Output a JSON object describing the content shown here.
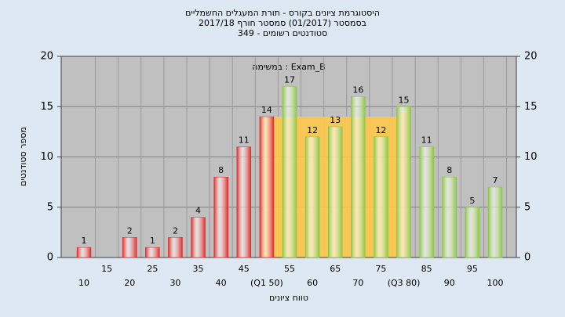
{
  "chart_data": {
    "type": "bar",
    "title": [
      "היסטוגרמת ציונים בקורס - תורת המעגלים החשמליים",
      "בסמסטר (01/2017) סמסטר חורף 2017/18",
      "349 - סטודנטים רשומים"
    ],
    "subtitle": "במשימה : Exam_B",
    "x_label": "טווח ציונים",
    "y_label": "מספר סטודנטים",
    "categories": [
      "10",
      "15",
      "20",
      "25",
      "30",
      "35",
      "40",
      "45",
      "(Q1 50)",
      "55",
      "60",
      "65",
      "70",
      "75",
      "(Q3 80)",
      "85",
      "90",
      "95",
      "100"
    ],
    "values": [
      1,
      null,
      2,
      1,
      2,
      4,
      8,
      11,
      14,
      17,
      12,
      13,
      16,
      12,
      15,
      11,
      8,
      5,
      7
    ],
    "colors": [
      "#e02828",
      "#e02828",
      "#e02828",
      "#e02828",
      "#e02828",
      "#e02828",
      "#e02828",
      "#e02828",
      "#e02828",
      "#8cc63f",
      "#8cc63f",
      "#8cc63f",
      "#8cc63f",
      "#8cc63f",
      "#8cc63f",
      "#8cc63f",
      "#8cc63f",
      "#8cc63f",
      "#8cc63f"
    ],
    "iqr_band": {
      "from": 8,
      "to": 14,
      "start_height": 14,
      "end_height": 15,
      "color": "#ffc84a"
    },
    "ylim": [
      0,
      20
    ],
    "yticks": [
      0,
      5,
      10,
      15,
      20
    ],
    "y2lim": [
      0,
      20
    ],
    "y2ticks": [
      0,
      5,
      10,
      15,
      20
    ],
    "grid": true
  }
}
